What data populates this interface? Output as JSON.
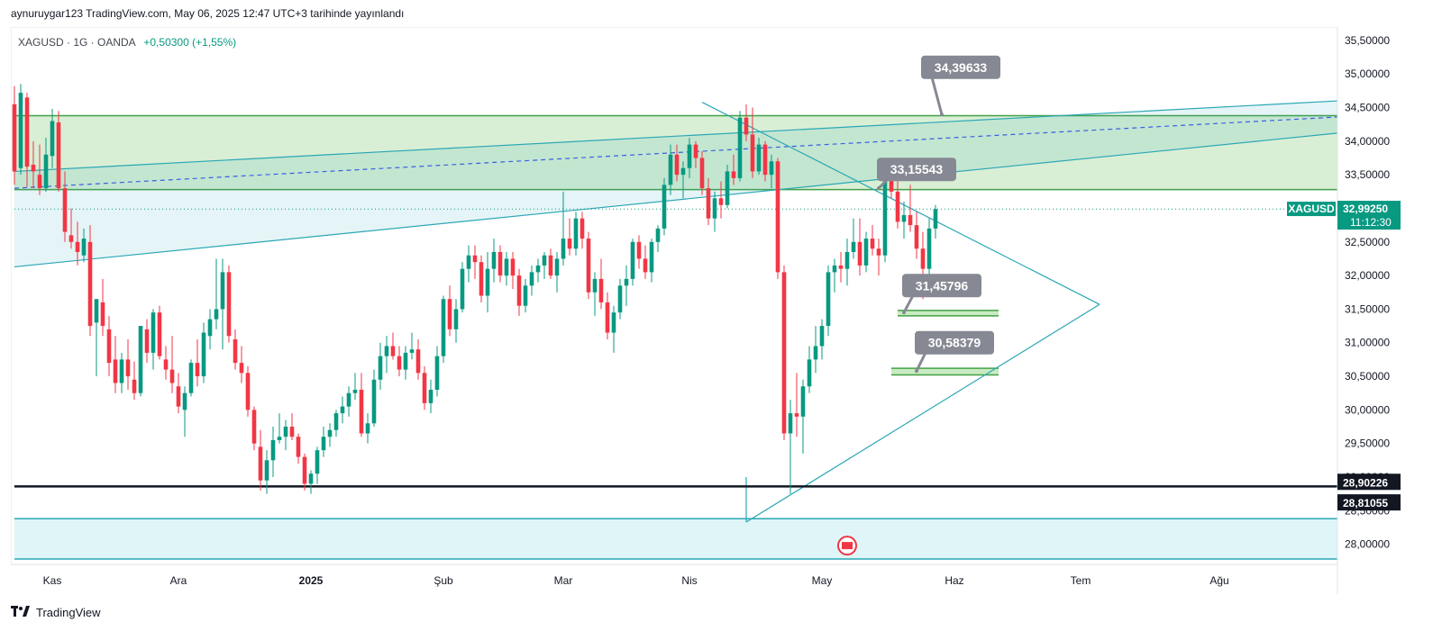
{
  "header": {
    "published_text": "aynuruygar123 TradingView.com, May 06, 2025 12:47 UTC+3 tarihinde yayınlandı"
  },
  "legend": {
    "symbol": "XAGUSD · 1G · OANDA",
    "change": "+0,50300 (+1,55%)"
  },
  "footer": {
    "brand": "TradingView",
    "logo_icon": "tradingview-logo-icon"
  },
  "colors": {
    "up": "#089981",
    "down": "#f23645",
    "zone": "#d9efd5",
    "zone_line": "#43a047",
    "channel": "#2aa7b5",
    "label_bg": "#868993",
    "support": "#131722"
  },
  "chart_data": {
    "type": "candlestick",
    "symbol": "XAGUSD",
    "timeframe": "1G",
    "ylim": [
      27.7,
      35.7
    ],
    "x_ticks": [
      {
        "label": "Kas",
        "i": 6
      },
      {
        "label": "Ara",
        "i": 26
      },
      {
        "label": "2025",
        "i": 47
      },
      {
        "label": "Şub",
        "i": 68
      },
      {
        "label": "Mar",
        "i": 87
      },
      {
        "label": "Nis",
        "i": 107
      },
      {
        "label": "May",
        "i": 128
      },
      {
        "label": "Haz",
        "i": 149
      },
      {
        "label": "Tem",
        "i": 169
      },
      {
        "label": "Ağu",
        "i": 191
      }
    ],
    "y_ticks": [
      "35,50000",
      "35,00000",
      "34,50000",
      "34,00000",
      "33,50000",
      "32,50000",
      "32,00000",
      "31,50000",
      "31,00000",
      "30,50000",
      "30,00000",
      "29,50000",
      "29,00000",
      "28,50000",
      "28,00000"
    ],
    "y_tick_values": [
      35.5,
      35.0,
      34.5,
      34.0,
      33.5,
      32.5,
      32.0,
      31.5,
      31.0,
      30.5,
      30.0,
      29.5,
      29.0,
      28.5,
      28.0
    ],
    "last_price": {
      "symbol": "XAGUSD",
      "value": "32,99250",
      "value_num": 32.9925,
      "countdown": "11:12:30"
    },
    "support_labels": [
      {
        "value": "28,90226",
        "value_num": 28.90226,
        "color": "#131722"
      },
      {
        "value": "28,81055",
        "value_num": 28.81055,
        "color": "#131722"
      }
    ],
    "annotations": [
      {
        "label": "34,39633",
        "i": 147,
        "y": 34.39633,
        "lx": 150,
        "ly": 35.1
      },
      {
        "label": "33,15543",
        "i": 137,
        "y": 33.3,
        "lx": 143,
        "ly": 33.58
      },
      {
        "label": "31,45796",
        "i": 141,
        "y": 31.45,
        "lx": 147,
        "ly": 31.85
      },
      {
        "label": "30,58379",
        "i": 143,
        "y": 30.58,
        "lx": 149,
        "ly": 31.0
      }
    ],
    "zones": [
      {
        "name": "resistance-zone",
        "i0": 0,
        "i1": 212,
        "y0": 33.28,
        "y1": 34.38,
        "fill": "#d9efd5",
        "line": "#43a047"
      },
      {
        "name": "bottom-zone",
        "i0": 0,
        "i1": 212,
        "y0": 27.78,
        "y1": 28.38,
        "fill": "#dff5f8",
        "line": "#2aa7b5"
      },
      {
        "name": "target-box-1",
        "i0": 140,
        "i1": 156,
        "y0": 31.4,
        "y1": 31.48,
        "fill": "#c8ebc1",
        "line": "#43a047"
      },
      {
        "name": "target-box-2",
        "i0": 139,
        "i1": 156,
        "y0": 30.52,
        "y1": 30.62,
        "fill": "#c8ebc1",
        "line": "#43a047"
      }
    ],
    "lines": [
      {
        "name": "channel-upper",
        "i0": 0,
        "y0": 33.55,
        "i1": 212,
        "y1": 34.6,
        "color": "#2aa7b5",
        "dash": false
      },
      {
        "name": "channel-lower",
        "i0": 0,
        "y0": 32.13,
        "i1": 212,
        "y1": 34.12,
        "color": "#2aa7b5",
        "dash": false
      },
      {
        "name": "channel-mid",
        "i0": 0,
        "y0": 33.3,
        "i1": 212,
        "y1": 34.36,
        "color": "#3d5ee1",
        "dash": true
      },
      {
        "name": "triangle-top",
        "i0": 109,
        "y0": 34.58,
        "i1": 172,
        "y1": 31.57,
        "color": "#2aa7b5",
        "dash": false
      },
      {
        "name": "triangle-bottom",
        "i0": 116,
        "y0": 28.33,
        "i1": 172,
        "y1": 31.57,
        "color": "#2aa7b5",
        "dash": false
      },
      {
        "name": "triangle-left",
        "i0": 116,
        "y0": 28.33,
        "i1": 116,
        "y1": 29.0,
        "color": "#2aa7b5",
        "dash": false
      },
      {
        "name": "support-line",
        "i0": 0,
        "y0": 28.86,
        "i1": 212,
        "y1": 28.86,
        "color": "#131722",
        "dash": false,
        "width": 2.5
      },
      {
        "name": "last-price-line",
        "i0": 0,
        "y0": 32.99,
        "i1": 212,
        "y1": 32.99,
        "color": "#089981",
        "dash": true,
        "width": 1
      }
    ],
    "candles": [
      [
        34.55,
        34.82,
        33.35,
        33.55
      ],
      [
        33.6,
        34.85,
        33.5,
        34.72
      ],
      [
        34.65,
        34.72,
        33.32,
        33.62
      ],
      [
        33.65,
        34.0,
        33.3,
        33.55
      ],
      [
        33.5,
        33.95,
        33.2,
        33.3
      ],
      [
        33.3,
        34.05,
        33.25,
        33.8
      ],
      [
        33.78,
        34.48,
        33.6,
        34.3
      ],
      [
        34.28,
        34.45,
        33.25,
        33.3
      ],
      [
        33.3,
        33.55,
        32.5,
        32.65
      ],
      [
        32.6,
        33.0,
        32.4,
        32.5
      ],
      [
        32.5,
        32.8,
        32.15,
        32.35
      ],
      [
        32.3,
        32.7,
        32.2,
        32.55
      ],
      [
        32.5,
        32.75,
        31.1,
        31.25
      ],
      [
        31.3,
        31.65,
        30.5,
        31.65
      ],
      [
        31.6,
        31.95,
        31.1,
        31.25
      ],
      [
        31.2,
        31.4,
        30.5,
        30.7
      ],
      [
        30.75,
        31.1,
        30.25,
        30.4
      ],
      [
        30.4,
        30.85,
        30.25,
        30.75
      ],
      [
        30.75,
        31.05,
        30.3,
        30.5
      ],
      [
        30.45,
        30.72,
        30.15,
        30.25
      ],
      [
        30.25,
        31.25,
        30.2,
        31.25
      ],
      [
        31.2,
        31.35,
        30.7,
        30.85
      ],
      [
        30.85,
        31.5,
        30.6,
        31.45
      ],
      [
        31.45,
        31.55,
        30.75,
        30.8
      ],
      [
        30.75,
        30.95,
        30.45,
        30.6
      ],
      [
        30.6,
        31.1,
        30.25,
        30.4
      ],
      [
        30.35,
        30.55,
        29.95,
        30.05
      ],
      [
        30.0,
        30.35,
        29.6,
        30.25
      ],
      [
        30.25,
        30.75,
        30.2,
        30.7
      ],
      [
        30.7,
        31.05,
        30.35,
        30.5
      ],
      [
        30.5,
        31.3,
        30.4,
        31.15
      ],
      [
        31.1,
        31.5,
        30.9,
        31.35
      ],
      [
        31.35,
        32.25,
        31.2,
        31.5
      ],
      [
        31.5,
        32.25,
        30.9,
        32.05
      ],
      [
        32.05,
        32.15,
        31.0,
        31.1
      ],
      [
        31.05,
        31.2,
        30.6,
        30.7
      ],
      [
        30.7,
        30.95,
        30.4,
        30.55
      ],
      [
        30.55,
        30.65,
        29.9,
        30.0
      ],
      [
        30.0,
        30.05,
        29.4,
        29.5
      ],
      [
        29.45,
        29.7,
        28.8,
        28.95
      ],
      [
        28.95,
        29.4,
        28.75,
        29.25
      ],
      [
        29.25,
        29.75,
        29.0,
        29.55
      ],
      [
        29.55,
        29.95,
        29.5,
        29.6
      ],
      [
        29.6,
        29.85,
        29.4,
        29.75
      ],
      [
        29.75,
        29.95,
        29.55,
        29.6
      ],
      [
        29.6,
        29.65,
        29.2,
        29.3
      ],
      [
        29.3,
        29.35,
        28.8,
        28.9
      ],
      [
        28.9,
        29.1,
        28.75,
        29.05
      ],
      [
        29.05,
        29.45,
        28.9,
        29.4
      ],
      [
        29.4,
        29.75,
        29.3,
        29.6
      ],
      [
        29.6,
        29.8,
        29.45,
        29.7
      ],
      [
        29.7,
        30.0,
        29.6,
        29.95
      ],
      [
        29.95,
        30.2,
        29.8,
        30.05
      ],
      [
        30.05,
        30.35,
        29.9,
        30.25
      ],
      [
        30.25,
        30.55,
        30.15,
        30.3
      ],
      [
        30.3,
        30.55,
        29.6,
        29.65
      ],
      [
        29.65,
        29.95,
        29.5,
        29.8
      ],
      [
        29.8,
        30.6,
        29.75,
        30.45
      ],
      [
        30.45,
        31.0,
        30.3,
        30.8
      ],
      [
        30.8,
        31.1,
        30.55,
        30.95
      ],
      [
        30.95,
        31.15,
        30.75,
        30.8
      ],
      [
        30.8,
        30.95,
        30.5,
        30.6
      ],
      [
        30.6,
        30.95,
        30.45,
        30.85
      ],
      [
        30.85,
        31.15,
        30.75,
        30.9
      ],
      [
        30.9,
        31.05,
        30.45,
        30.55
      ],
      [
        30.55,
        30.65,
        30.0,
        30.1
      ],
      [
        30.1,
        30.45,
        29.95,
        30.3
      ],
      [
        30.3,
        30.95,
        30.2,
        30.8
      ],
      [
        30.8,
        31.7,
        30.7,
        31.65
      ],
      [
        31.65,
        31.85,
        31.1,
        31.2
      ],
      [
        31.2,
        31.65,
        31.0,
        31.5
      ],
      [
        31.5,
        32.2,
        31.45,
        32.1
      ],
      [
        32.1,
        32.45,
        31.9,
        32.3
      ],
      [
        32.3,
        32.45,
        31.95,
        32.2
      ],
      [
        32.2,
        32.3,
        31.6,
        31.7
      ],
      [
        31.7,
        32.35,
        31.45,
        32.1
      ],
      [
        32.1,
        32.55,
        31.9,
        32.35
      ],
      [
        32.35,
        32.45,
        31.9,
        32.0
      ],
      [
        32.0,
        32.35,
        31.85,
        32.25
      ],
      [
        32.25,
        32.35,
        31.8,
        32.0
      ],
      [
        32.0,
        32.1,
        31.4,
        31.55
      ],
      [
        31.55,
        31.95,
        31.45,
        31.85
      ],
      [
        31.85,
        32.15,
        31.7,
        32.05
      ],
      [
        32.05,
        32.25,
        31.9,
        32.15
      ],
      [
        32.15,
        32.35,
        31.95,
        32.3
      ],
      [
        32.3,
        32.4,
        31.95,
        32.0
      ],
      [
        32.0,
        32.35,
        31.75,
        32.25
      ],
      [
        32.25,
        33.25,
        32.15,
        32.55
      ],
      [
        32.55,
        32.85,
        32.3,
        32.4
      ],
      [
        32.4,
        32.95,
        32.3,
        32.85
      ],
      [
        32.85,
        32.95,
        32.4,
        32.55
      ],
      [
        32.55,
        32.65,
        31.65,
        31.75
      ],
      [
        31.75,
        32.05,
        31.4,
        31.95
      ],
      [
        31.95,
        32.25,
        31.5,
        31.6
      ],
      [
        31.6,
        31.75,
        31.05,
        31.15
      ],
      [
        31.15,
        31.55,
        30.85,
        31.45
      ],
      [
        31.45,
        31.95,
        31.35,
        31.85
      ],
      [
        31.85,
        32.15,
        31.55,
        31.95
      ],
      [
        31.95,
        32.55,
        31.85,
        32.5
      ],
      [
        32.5,
        32.6,
        32.1,
        32.25
      ],
      [
        32.25,
        32.45,
        31.95,
        32.05
      ],
      [
        32.05,
        32.55,
        31.9,
        32.5
      ],
      [
        32.5,
        32.75,
        32.35,
        32.7
      ],
      [
        32.7,
        33.45,
        32.6,
        33.35
      ],
      [
        33.35,
        33.95,
        33.2,
        33.8
      ],
      [
        33.8,
        33.95,
        33.4,
        33.5
      ],
      [
        33.5,
        33.7,
        33.15,
        33.6
      ],
      [
        33.6,
        34.05,
        33.45,
        33.95
      ],
      [
        33.95,
        34.0,
        33.6,
        33.75
      ],
      [
        33.75,
        33.85,
        33.2,
        33.3
      ],
      [
        33.3,
        33.45,
        32.75,
        32.85
      ],
      [
        32.85,
        33.25,
        32.65,
        33.15
      ],
      [
        33.15,
        33.4,
        32.85,
        33.05
      ],
      [
        33.05,
        33.65,
        33.0,
        33.55
      ],
      [
        33.55,
        33.8,
        33.35,
        33.45
      ],
      [
        33.45,
        34.45,
        33.4,
        34.35
      ],
      [
        34.35,
        34.55,
        34.0,
        34.1
      ],
      [
        34.1,
        34.5,
        33.45,
        33.55
      ],
      [
        33.55,
        34.05,
        33.5,
        33.95
      ],
      [
        33.95,
        34.0,
        33.4,
        33.5
      ],
      [
        33.5,
        33.8,
        33.3,
        33.7
      ],
      [
        33.7,
        33.75,
        31.95,
        32.05
      ],
      [
        32.05,
        32.15,
        29.55,
        29.65
      ],
      [
        29.65,
        30.15,
        28.75,
        29.95
      ],
      [
        29.95,
        30.55,
        29.6,
        29.9
      ],
      [
        29.9,
        30.45,
        29.35,
        30.35
      ],
      [
        30.35,
        30.95,
        30.25,
        30.75
      ],
      [
        30.75,
        31.25,
        30.55,
        30.95
      ],
      [
        30.95,
        31.35,
        30.75,
        31.25
      ],
      [
        31.25,
        32.15,
        31.1,
        32.05
      ],
      [
        32.05,
        32.25,
        31.75,
        32.15
      ],
      [
        32.15,
        32.35,
        31.9,
        32.1
      ],
      [
        32.1,
        32.55,
        31.85,
        32.35
      ],
      [
        32.35,
        32.85,
        32.25,
        32.5
      ],
      [
        32.5,
        32.85,
        32.0,
        32.15
      ],
      [
        32.15,
        32.65,
        32.05,
        32.55
      ],
      [
        32.55,
        32.75,
        32.3,
        32.4
      ],
      [
        32.4,
        32.55,
        32.0,
        32.3
      ],
      [
        32.3,
        33.55,
        32.2,
        33.45
      ],
      [
        33.45,
        33.7,
        33.15,
        33.25
      ],
      [
        33.25,
        33.55,
        32.7,
        32.8
      ],
      [
        32.8,
        33.1,
        32.55,
        32.9
      ],
      [
        32.9,
        33.35,
        32.65,
        32.75
      ],
      [
        32.75,
        32.95,
        32.25,
        32.4
      ],
      [
        32.4,
        32.65,
        31.65,
        32.1
      ],
      [
        32.1,
        32.85,
        31.95,
        32.7
      ],
      [
        32.7,
        33.05,
        32.55,
        32.99
      ]
    ]
  }
}
